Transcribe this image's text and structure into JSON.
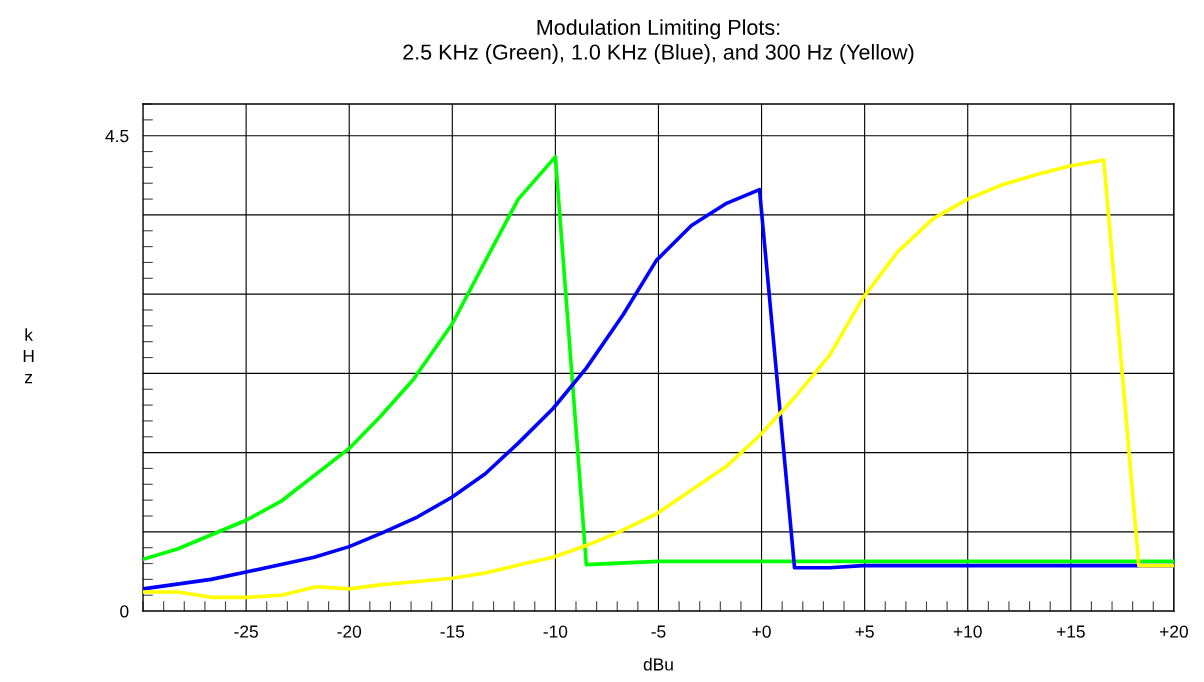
{
  "chart_data": {
    "type": "line",
    "title": "Modulation Limiting Plots:\n2.5 KHz (Green), 1.0 KHz (Blue), and 300 Hz (Yellow)",
    "xlabel": "dBu",
    "ylabel": "k\nH\nz",
    "series": [
      {
        "color": "#00ff00",
        "x": [
          -30,
          -28.3,
          -25,
          -23.3,
          -20,
          -18.5,
          -16.9,
          -15,
          -13.3,
          -11.8,
          -10,
          -8.5,
          -5,
          20
        ],
        "values": [
          0.49,
          0.59,
          0.86,
          1.04,
          1.54,
          1.84,
          2.19,
          2.72,
          3.35,
          3.9,
          4.3,
          0.44,
          0.47,
          0.47
        ]
      },
      {
        "color": "#0000ff",
        "x": [
          -30,
          -26.7,
          -25,
          -23.3,
          -21.7,
          -20,
          -18.4,
          -16.7,
          -15,
          -13.4,
          -11.8,
          -10.1,
          -8.5,
          -6.7,
          -5.1,
          -3.4,
          -1.7,
          -0.1,
          1.6,
          3.3,
          4.9,
          20
        ],
        "values": [
          0.21,
          0.3,
          0.37,
          0.44,
          0.51,
          0.61,
          0.74,
          0.89,
          1.08,
          1.3,
          1.59,
          1.92,
          2.3,
          2.81,
          3.32,
          3.65,
          3.86,
          3.99,
          0.41,
          0.41,
          0.43,
          0.43
        ]
      },
      {
        "color": "#ffff00",
        "x": [
          -30,
          -28.3,
          -26.7,
          -25,
          -23.3,
          -21.6,
          -20,
          -18.4,
          -16.7,
          -15,
          -13.4,
          -11.7,
          -10.1,
          -8.5,
          -6.9,
          -5.1,
          -1.7,
          -0.1,
          1.6,
          3.3,
          4.9,
          6.6,
          8.3,
          10,
          11.6,
          13.3,
          14.9,
          16.6,
          18.3,
          20
        ],
        "values": [
          0.18,
          0.18,
          0.13,
          0.13,
          0.15,
          0.23,
          0.21,
          0.25,
          0.28,
          0.31,
          0.36,
          0.44,
          0.51,
          0.62,
          0.75,
          0.92,
          1.37,
          1.66,
          2.02,
          2.42,
          2.96,
          3.4,
          3.71,
          3.9,
          4.03,
          4.13,
          4.21,
          4.27,
          0.43,
          0.43
        ]
      }
    ],
    "xlim": [
      -30,
      20
    ],
    "xticks": [
      -25,
      -20,
      -15,
      -10,
      -5,
      {
        "value": 0,
        "label": "+0"
      },
      {
        "value": 5,
        "label": "+5"
      },
      {
        "value": 10,
        "label": "+10"
      },
      {
        "value": 15,
        "label": "+15"
      },
      {
        "value": 20,
        "label": "+20"
      }
    ],
    "ylim": [
      0,
      4.8
    ],
    "yticks": [
      0,
      {
        "value": 0.75,
        "label": null
      },
      {
        "value": 1.5,
        "label": null
      },
      {
        "value": 2.25,
        "label": null
      },
      {
        "value": 3,
        "label": null
      },
      {
        "value": 3.75,
        "label": null
      },
      4.5
    ],
    "grid": true,
    "marker": "none",
    "line_style": "solid"
  }
}
